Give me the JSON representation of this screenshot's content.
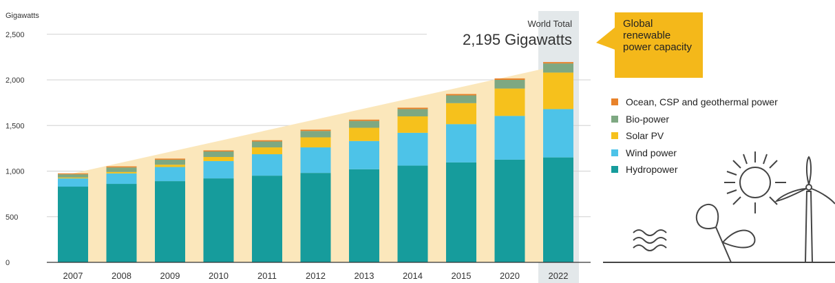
{
  "chart_data": {
    "type": "bar",
    "stacked": true,
    "ylabel": "Gigawatts",
    "ylim": [
      0,
      2500
    ],
    "yticks": [
      0,
      500,
      1000,
      1500,
      2000,
      2500
    ],
    "ytick_labels": [
      "0",
      "500",
      "1,000",
      "1,500",
      "2,000",
      "2,500"
    ],
    "categories": [
      "2007",
      "2008",
      "2009",
      "2010",
      "2011",
      "2012",
      "2013",
      "2014",
      "2015",
      "2020",
      "2022"
    ],
    "series": [
      {
        "name": "Hydropower",
        "color": "#169c9c",
        "values": [
          830,
          860,
          890,
          920,
          950,
          980,
          1020,
          1060,
          1095,
          1125,
          1150
        ]
      },
      {
        "name": "Wind power",
        "color": "#4dc3e8",
        "values": [
          90,
          115,
          155,
          190,
          235,
          280,
          310,
          360,
          420,
          480,
          530
        ]
      },
      {
        "name": "Solar PV",
        "color": "#f6c11c",
        "values": [
          10,
          15,
          25,
          45,
          75,
          110,
          145,
          180,
          230,
          300,
          400
        ]
      },
      {
        "name": "Bio-power",
        "color": "#7ea882",
        "values": [
          35,
          50,
          55,
          60,
          65,
          70,
          75,
          80,
          85,
          95,
          100
        ]
      },
      {
        "name": "Ocean, CSP and geothermal power",
        "color": "#e8822a",
        "values": [
          10,
          12,
          12,
          12,
          13,
          14,
          14,
          15,
          15,
          16,
          15
        ]
      }
    ],
    "annotations": {
      "world_total_label": "World Total",
      "world_total_value": "2,195 Gigawatts",
      "callout": "Global renewable power capacity"
    },
    "legend_position": "right",
    "grid": true,
    "highlight_category": "2022"
  },
  "colors": {
    "highlight_band": "#e3e8ea",
    "trend_fill": "#fbe7bb",
    "callout": "#f4b81a",
    "gridline": "#d0d0d0",
    "axis": "#333333",
    "illustration": "#444444"
  },
  "illustration_icons": [
    "sun-icon",
    "water-waves-icon",
    "plant-icon",
    "wind-turbine-icon"
  ]
}
